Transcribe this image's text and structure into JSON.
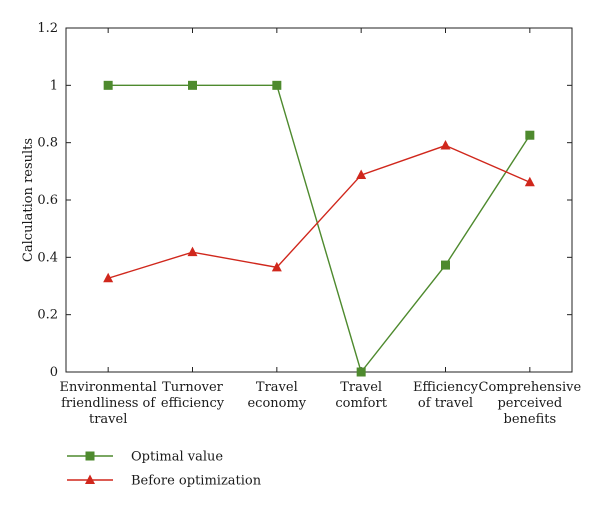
{
  "chart_data": {
    "type": "line",
    "ylabel": "Calculation results",
    "ylim": [
      0,
      1.2
    ],
    "yticks": [
      "0",
      "0.2",
      "0.4",
      "0.6",
      "0.8",
      "1",
      "1.2"
    ],
    "categories": [
      [
        "Environmental",
        "friendliness of",
        "travel"
      ],
      [
        "Turnover",
        "efficiency"
      ],
      [
        "Travel",
        "economy"
      ],
      [
        "Travel",
        "comfort"
      ],
      [
        "Efficiency",
        "of travel"
      ],
      [
        "Comprehensive",
        "perceived",
        "benefits"
      ]
    ],
    "series": [
      {
        "name": "Optimal value",
        "marker": "square",
        "color": "#4e8a2e",
        "values": [
          1,
          1,
          1,
          0,
          0.373,
          0.826
        ]
      },
      {
        "name": "Before optimization",
        "marker": "triangle",
        "color": "#d0271c",
        "values": [
          0.327,
          0.418,
          0.365,
          0.687,
          0.79,
          0.662
        ]
      }
    ],
    "legend": "bottom-left",
    "grid": false
  }
}
